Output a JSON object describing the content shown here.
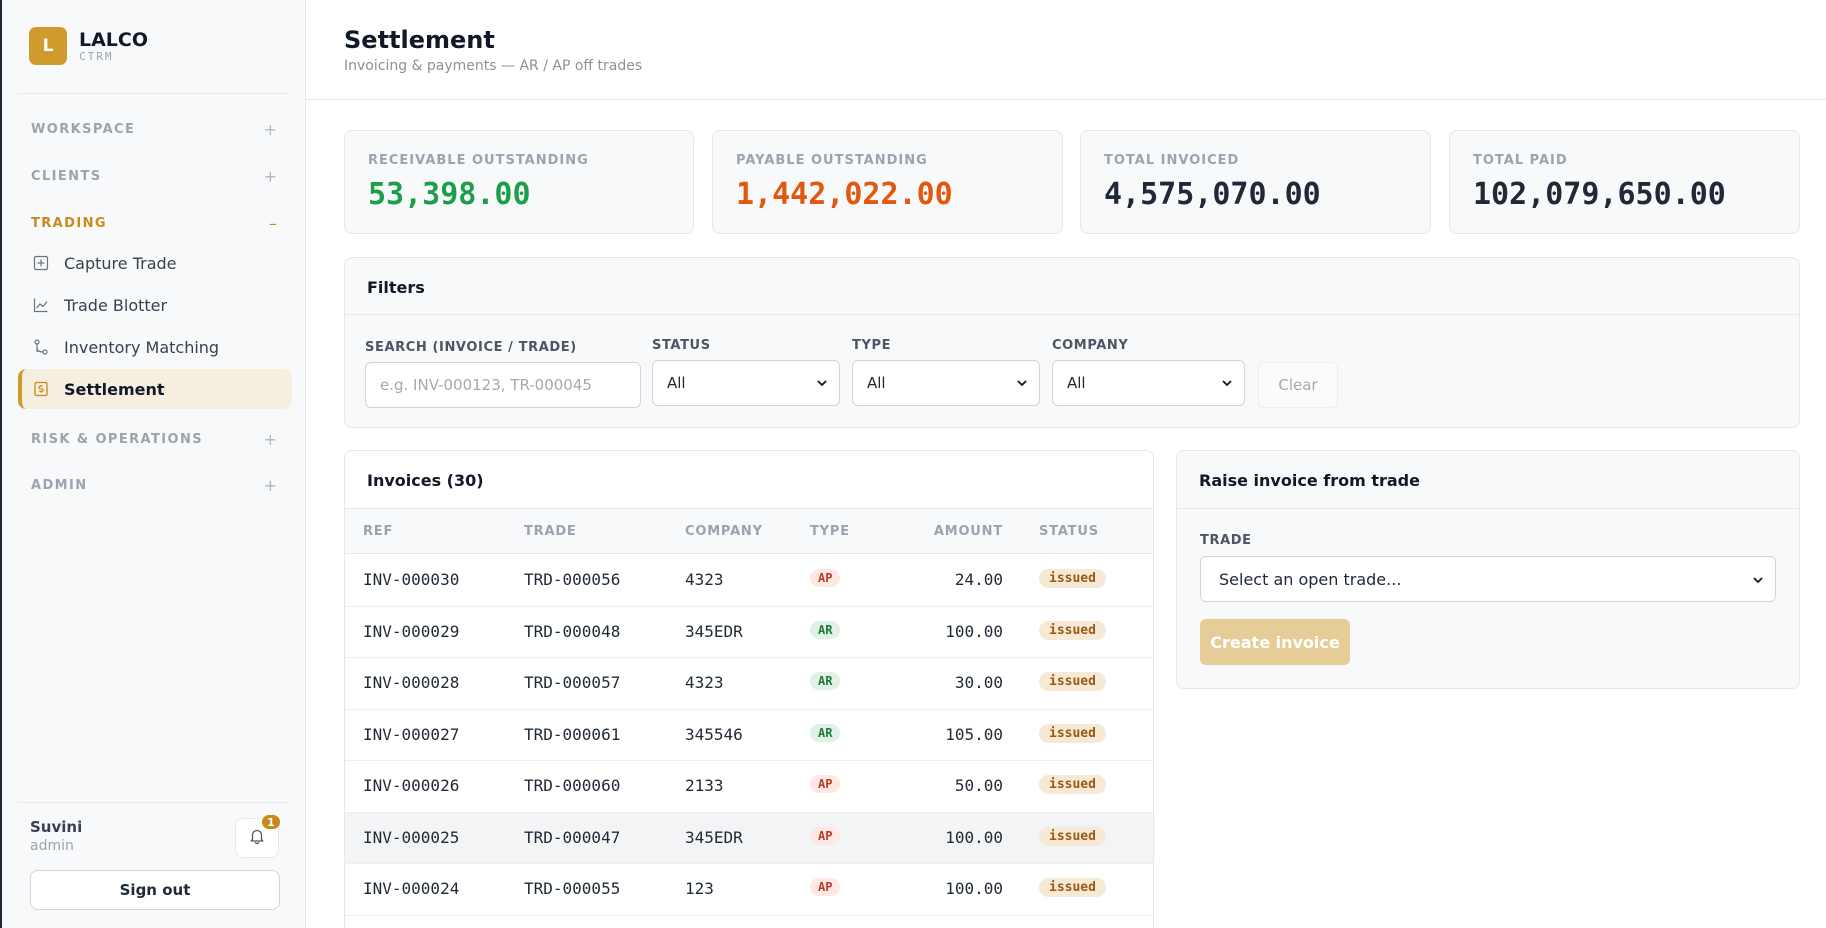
{
  "brand": {
    "logo_letter": "L",
    "name": "LALCO",
    "sub": "CTRM"
  },
  "sidebar": {
    "sections": {
      "workspace": {
        "label": "WORKSPACE",
        "toggle": "+"
      },
      "clients": {
        "label": "CLIENTS",
        "toggle": "+"
      },
      "trading": {
        "label": "TRADING",
        "toggle": "–"
      },
      "risk": {
        "label": "RISK & OPERATIONS",
        "toggle": "+"
      },
      "admin": {
        "label": "ADMIN",
        "toggle": "+"
      }
    },
    "items": [
      {
        "label": "Capture Trade",
        "icon": "plus-square-icon"
      },
      {
        "label": "Trade Blotter",
        "icon": "line-chart-icon"
      },
      {
        "label": "Inventory Matching",
        "icon": "branch-icon"
      },
      {
        "label": "Settlement",
        "icon": "dollar-doc-icon",
        "active": true
      }
    ],
    "user": {
      "name": "Suvini",
      "role": "admin"
    },
    "notifications": {
      "count": "1"
    },
    "signout_label": "Sign out"
  },
  "header": {
    "title": "Settlement",
    "subtitle": "Invoicing & payments — AR / AP off trades"
  },
  "stats": [
    {
      "label": "RECEIVABLE OUTSTANDING",
      "value": "53,398.00",
      "color": "#1e9e4a"
    },
    {
      "label": "PAYABLE OUTSTANDING",
      "value": "1,442,022.00",
      "color": "#e2580e"
    },
    {
      "label": "TOTAL INVOICED",
      "value": "4,575,070.00",
      "color": "#1f2937"
    },
    {
      "label": "TOTAL PAID",
      "value": "102,079,650.00",
      "color": "#1f2937"
    }
  ],
  "filters": {
    "title": "Filters",
    "search": {
      "label": "SEARCH (INVOICE / TRADE)",
      "placeholder": "e.g. INV-000123, TR-000045"
    },
    "status": {
      "label": "STATUS",
      "value": "All"
    },
    "type": {
      "label": "TYPE",
      "value": "All"
    },
    "company": {
      "label": "COMPANY",
      "value": "All"
    },
    "clear_label": "Clear"
  },
  "invoices": {
    "title": "Invoices (30)",
    "columns": {
      "ref": "REF",
      "trade": "TRADE",
      "company": "COMPANY",
      "type": "TYPE",
      "amount": "AMOUNT",
      "status": "STATUS"
    },
    "rows": [
      {
        "ref": "INV-000030",
        "trade": "TRD-000056",
        "company": "4323",
        "type": "AP",
        "amount": "24.00",
        "status": "issued"
      },
      {
        "ref": "INV-000029",
        "trade": "TRD-000048",
        "company": "345EDR",
        "type": "AR",
        "amount": "100.00",
        "status": "issued"
      },
      {
        "ref": "INV-000028",
        "trade": "TRD-000057",
        "company": "4323",
        "type": "AR",
        "amount": "30.00",
        "status": "issued"
      },
      {
        "ref": "INV-000027",
        "trade": "TRD-000061",
        "company": "345546",
        "type": "AR",
        "amount": "105.00",
        "status": "issued"
      },
      {
        "ref": "INV-000026",
        "trade": "TRD-000060",
        "company": "2133",
        "type": "AP",
        "amount": "50.00",
        "status": "issued"
      },
      {
        "ref": "INV-000025",
        "trade": "TRD-000047",
        "company": "345EDR",
        "type": "AP",
        "amount": "100.00",
        "status": "issued"
      },
      {
        "ref": "INV-000024",
        "trade": "TRD-000055",
        "company": "123",
        "type": "AP",
        "amount": "100.00",
        "status": "issued"
      }
    ]
  },
  "raise": {
    "title": "Raise invoice from trade",
    "trade_label": "TRADE",
    "trade_placeholder": "Select an open trade...",
    "create_label": "Create invoice"
  }
}
